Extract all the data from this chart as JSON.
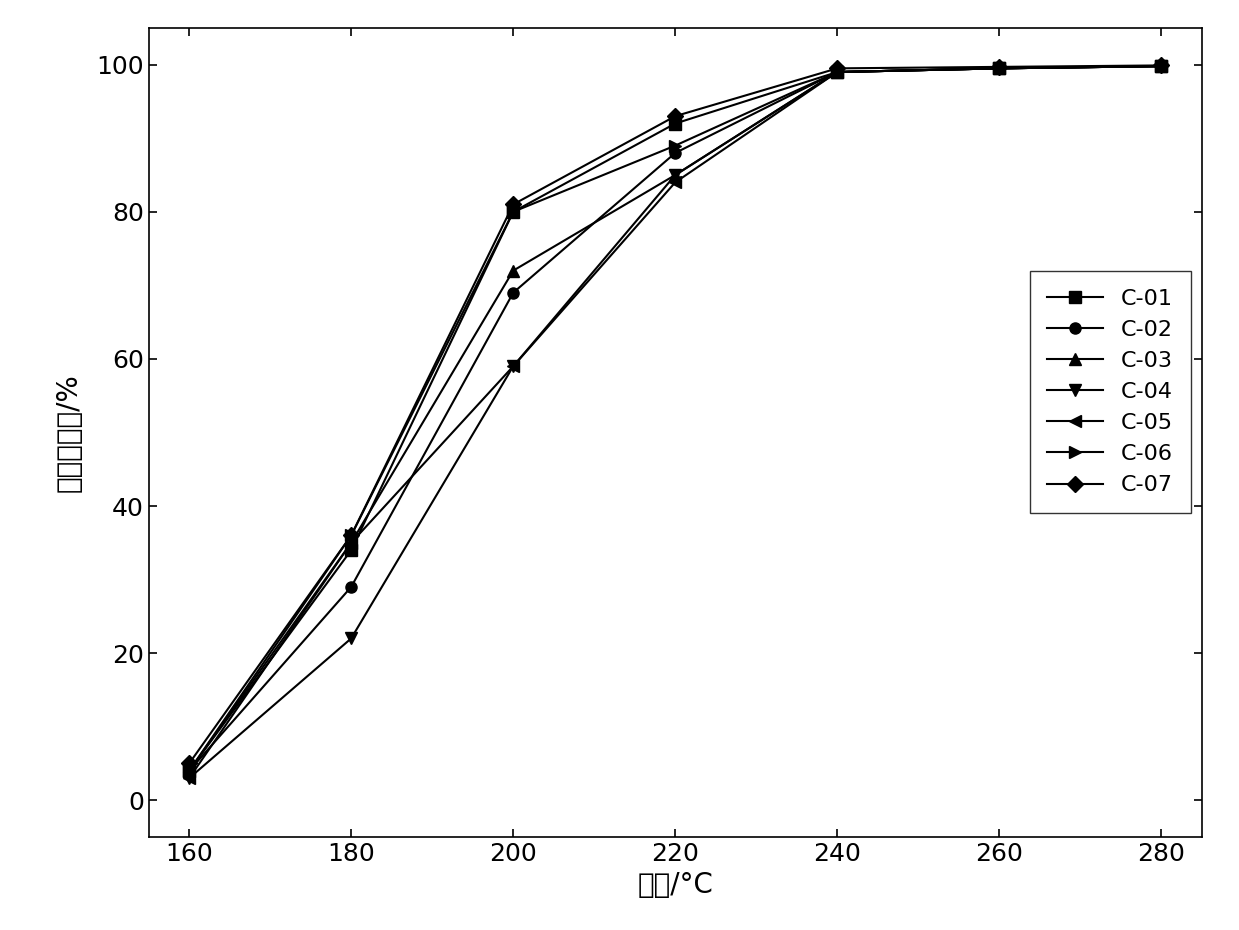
{
  "x": [
    160,
    180,
    200,
    220,
    240,
    260,
    280
  ],
  "series": [
    {
      "label": "C-01",
      "marker": "s",
      "values": [
        4,
        34,
        80,
        92,
        99,
        99.5,
        99.8
      ]
    },
    {
      "label": "C-02",
      "marker": "o",
      "values": [
        4,
        29,
        69,
        88,
        99,
        99.5,
        99.8
      ]
    },
    {
      "label": "C-03",
      "marker": "^",
      "values": [
        4,
        35,
        72,
        85,
        99,
        99.5,
        99.8
      ]
    },
    {
      "label": "C-04",
      "marker": "v",
      "values": [
        3,
        22,
        59,
        85,
        99,
        99.5,
        99.8
      ]
    },
    {
      "label": "C-05",
      "marker": "<",
      "values": [
        3,
        35,
        59,
        84,
        99,
        99.5,
        99.8
      ]
    },
    {
      "label": "C-06",
      "marker": ">",
      "values": [
        4,
        36,
        80,
        89,
        99,
        99.5,
        99.8
      ]
    },
    {
      "label": "C-07",
      "marker": "D",
      "values": [
        5,
        36,
        81,
        93,
        99.5,
        99.7,
        99.9
      ]
    }
  ],
  "xlabel": "温度/°C",
  "ylabel": "乙醇降解率/%",
  "xlim": [
    155,
    285
  ],
  "ylim": [
    -5,
    105
  ],
  "xticks": [
    160,
    180,
    200,
    220,
    240,
    260,
    280
  ],
  "yticks": [
    0,
    20,
    40,
    60,
    80,
    100
  ],
  "color": "#000000",
  "linewidth": 1.5,
  "markersize": 8,
  "legend_fontsize": 16,
  "axis_label_fontsize": 20,
  "tick_fontsize": 18
}
